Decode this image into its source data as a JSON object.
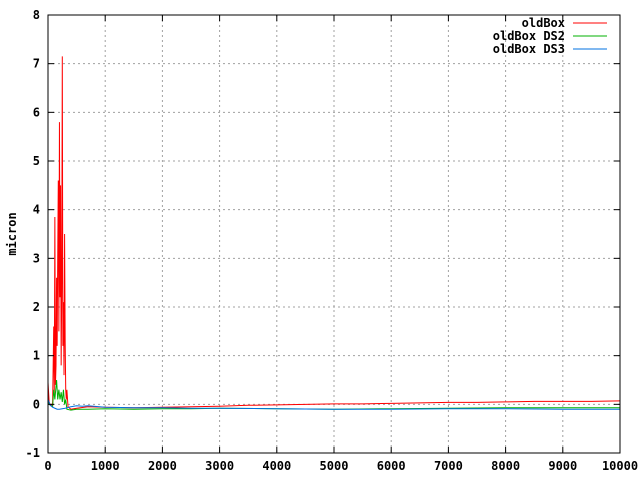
{
  "chart_data": {
    "type": "line",
    "title": "",
    "xlabel": "",
    "ylabel": "micron",
    "xlim": [
      0,
      10000
    ],
    "ylim": [
      -1,
      8
    ],
    "xticks": [
      0,
      1000,
      2000,
      3000,
      4000,
      5000,
      6000,
      7000,
      8000,
      9000,
      10000
    ],
    "yticks": [
      -1,
      0,
      1,
      2,
      3,
      4,
      5,
      6,
      7,
      8
    ],
    "grid": true,
    "legend_position": "top-right",
    "series": [
      {
        "name": "oldBox",
        "color": "#ff0000",
        "points": [
          [
            0,
            0.45
          ],
          [
            20,
            0.05
          ],
          [
            40,
            -0.02
          ],
          [
            60,
            0.0
          ],
          [
            80,
            -0.05
          ],
          [
            100,
            1.6
          ],
          [
            110,
            0.2
          ],
          [
            120,
            3.85
          ],
          [
            130,
            0.4
          ],
          [
            140,
            0.8
          ],
          [
            150,
            2.6
          ],
          [
            160,
            1.2
          ],
          [
            170,
            3.0
          ],
          [
            180,
            4.6
          ],
          [
            190,
            1.5
          ],
          [
            200,
            5.8
          ],
          [
            210,
            2.2
          ],
          [
            220,
            4.5
          ],
          [
            230,
            0.8
          ],
          [
            240,
            2.4
          ],
          [
            250,
            7.15
          ],
          [
            260,
            1.2
          ],
          [
            270,
            2.1
          ],
          [
            280,
            0.6
          ],
          [
            290,
            3.5
          ],
          [
            300,
            1.3
          ],
          [
            310,
            0.3
          ],
          [
            320,
            0.1
          ],
          [
            330,
            0.3
          ],
          [
            350,
            -0.05
          ],
          [
            400,
            -0.1
          ],
          [
            500,
            -0.08
          ],
          [
            700,
            -0.05
          ],
          [
            1000,
            -0.06
          ],
          [
            1500,
            -0.07
          ],
          [
            2000,
            -0.06
          ],
          [
            2500,
            -0.05
          ],
          [
            3000,
            -0.04
          ],
          [
            3500,
            -0.02
          ],
          [
            4000,
            -0.01
          ],
          [
            4500,
            0.0
          ],
          [
            5000,
            0.01
          ],
          [
            5500,
            0.01
          ],
          [
            6000,
            0.02
          ],
          [
            6500,
            0.03
          ],
          [
            7000,
            0.04
          ],
          [
            7500,
            0.04
          ],
          [
            8000,
            0.05
          ],
          [
            8500,
            0.06
          ],
          [
            9000,
            0.06
          ],
          [
            9500,
            0.06
          ],
          [
            10000,
            0.07
          ]
        ]
      },
      {
        "name": "oldBox DS2",
        "color": "#00b000",
        "points": [
          [
            0,
            0.05
          ],
          [
            40,
            -0.02
          ],
          [
            80,
            -0.05
          ],
          [
            100,
            0.3
          ],
          [
            120,
            0.1
          ],
          [
            150,
            0.5
          ],
          [
            170,
            0.1
          ],
          [
            190,
            0.3
          ],
          [
            210,
            0.1
          ],
          [
            230,
            0.25
          ],
          [
            250,
            0.05
          ],
          [
            270,
            0.3
          ],
          [
            290,
            0.0
          ],
          [
            310,
            0.1
          ],
          [
            330,
            -0.1
          ],
          [
            400,
            -0.12
          ],
          [
            500,
            -0.1
          ],
          [
            700,
            -0.1
          ],
          [
            1000,
            -0.09
          ],
          [
            1500,
            -0.1
          ],
          [
            2000,
            -0.09
          ],
          [
            2500,
            -0.09
          ],
          [
            3000,
            -0.08
          ],
          [
            4000,
            -0.09
          ],
          [
            5000,
            -0.1
          ],
          [
            6000,
            -0.09
          ],
          [
            7000,
            -0.08
          ],
          [
            8000,
            -0.07
          ],
          [
            9000,
            -0.07
          ],
          [
            10000,
            -0.07
          ]
        ]
      },
      {
        "name": "oldBox DS3",
        "color": "#0070e0",
        "points": [
          [
            0,
            0.1
          ],
          [
            40,
            -0.02
          ],
          [
            80,
            -0.06
          ],
          [
            120,
            -0.08
          ],
          [
            160,
            -0.1
          ],
          [
            200,
            -0.1
          ],
          [
            300,
            -0.08
          ],
          [
            400,
            -0.05
          ],
          [
            500,
            -0.03
          ],
          [
            600,
            -0.04
          ],
          [
            700,
            -0.03
          ],
          [
            800,
            -0.04
          ],
          [
            1000,
            -0.06
          ],
          [
            1500,
            -0.07
          ],
          [
            2000,
            -0.07
          ],
          [
            2500,
            -0.08
          ],
          [
            3000,
            -0.08
          ],
          [
            4000,
            -0.09
          ],
          [
            5000,
            -0.1
          ],
          [
            6000,
            -0.1
          ],
          [
            7000,
            -0.09
          ],
          [
            8000,
            -0.09
          ],
          [
            9000,
            -0.1
          ],
          [
            10000,
            -0.1
          ]
        ]
      }
    ]
  }
}
